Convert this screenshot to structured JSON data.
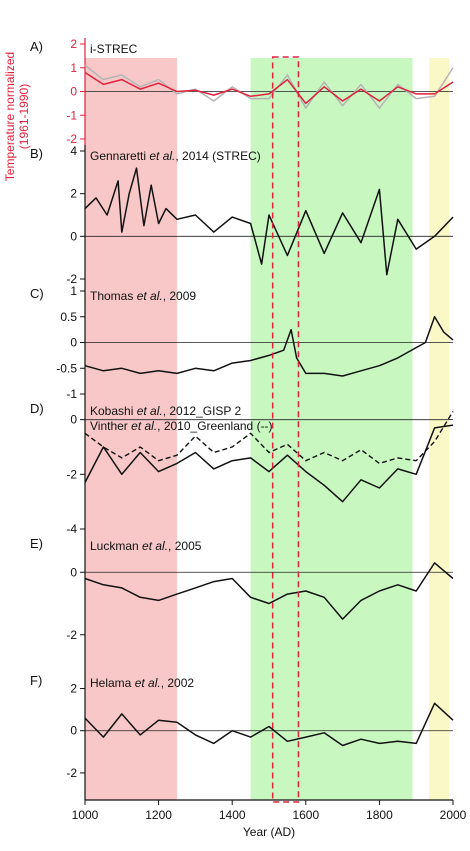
{
  "chart_data": {
    "type": "line",
    "xlabel": "Year (AD)",
    "xlim": [
      1000,
      2000
    ],
    "xticks": [
      1000,
      1200,
      1400,
      1600,
      1800,
      2000
    ],
    "shaded_periods": [
      {
        "from": 1000,
        "to": 1250,
        "color": "#f8c8c8"
      },
      {
        "from": 1450,
        "to": 1890,
        "color": "#c8f8c0"
      },
      {
        "from": 1935,
        "to": 1990,
        "color": "#fbf8c8"
      }
    ],
    "dashed_box": {
      "from": 1510,
      "to": 1580,
      "color": "#e0223c"
    },
    "panels": [
      {
        "letter": "A)",
        "ylabel": "Temperature normalized (1961-1990)",
        "axis_color": "#e0223c",
        "ylim": [
          -2,
          2
        ],
        "yticks": [
          -2,
          -1,
          0,
          1,
          2
        ],
        "label_parts": [
          {
            "text": "i-STREC",
            "italic": false
          }
        ],
        "series": [
          {
            "style": "grey",
            "color": "#b4b4b4",
            "width": 1.5,
            "dashed": false,
            "x": [
              1000,
              1050,
              1100,
              1150,
              1200,
              1250,
              1300,
              1350,
              1400,
              1450,
              1500,
              1550,
              1600,
              1650,
              1700,
              1750,
              1800,
              1850,
              1900,
              1950,
              2000
            ],
            "y": [
              1.1,
              0.5,
              0.7,
              0.2,
              0.5,
              -0.1,
              0.1,
              -0.4,
              0.2,
              -0.3,
              -0.3,
              0.7,
              -0.7,
              0.4,
              -0.6,
              0.3,
              -0.7,
              0.3,
              -0.3,
              -0.2,
              1.0
            ]
          },
          {
            "style": "red",
            "color": "#e0223c",
            "width": 1.5,
            "dashed": false,
            "x": [
              1000,
              1050,
              1100,
              1150,
              1200,
              1250,
              1300,
              1350,
              1400,
              1450,
              1500,
              1550,
              1600,
              1650,
              1700,
              1750,
              1800,
              1850,
              1900,
              1950,
              2000
            ],
            "y": [
              0.8,
              0.3,
              0.5,
              0.1,
              0.35,
              0.0,
              0.05,
              -0.15,
              0.1,
              -0.2,
              -0.1,
              0.5,
              -0.5,
              0.2,
              -0.4,
              0.1,
              -0.4,
              0.2,
              -0.1,
              -0.1,
              0.4
            ]
          }
        ]
      },
      {
        "letter": "B)",
        "ylim": [
          -2,
          4
        ],
        "yticks": [
          -2,
          0,
          2,
          4
        ],
        "label_parts": [
          {
            "text": "Gennaretti ",
            "italic": false
          },
          {
            "text": "et al.",
            "italic": true
          },
          {
            "text": ", 2014 (STREC)",
            "italic": false
          }
        ],
        "series": [
          {
            "style": "black",
            "color": "#111111",
            "width": 1.5,
            "dashed": false,
            "x": [
              1000,
              1030,
              1060,
              1090,
              1100,
              1120,
              1140,
              1160,
              1180,
              1200,
              1220,
              1250,
              1300,
              1350,
              1400,
              1450,
              1480,
              1500,
              1550,
              1600,
              1650,
              1700,
              1750,
              1800,
              1820,
              1850,
              1900,
              1950,
              2000
            ],
            "y": [
              1.3,
              1.8,
              1.0,
              2.6,
              0.2,
              2.0,
              3.2,
              0.5,
              2.4,
              0.6,
              1.3,
              0.8,
              1.0,
              0.2,
              0.9,
              0.6,
              -1.3,
              1.0,
              -0.9,
              1.2,
              -0.8,
              1.1,
              -0.3,
              2.2,
              -1.8,
              0.8,
              -0.6,
              0.0,
              0.9
            ]
          }
        ]
      },
      {
        "letter": "C)",
        "ylim": [
          -1,
          1
        ],
        "yticks": [
          -1,
          -0.5,
          0,
          0.5,
          1
        ],
        "label_parts": [
          {
            "text": "Thomas ",
            "italic": false
          },
          {
            "text": "et al.",
            "italic": true
          },
          {
            "text": ", 2009",
            "italic": false
          }
        ],
        "series": [
          {
            "style": "black",
            "color": "#111111",
            "width": 1.5,
            "dashed": false,
            "x": [
              1000,
              1050,
              1100,
              1150,
              1200,
              1250,
              1300,
              1350,
              1400,
              1450,
              1500,
              1540,
              1560,
              1575,
              1600,
              1650,
              1700,
              1750,
              1800,
              1850,
              1900,
              1925,
              1950,
              1975,
              2000
            ],
            "y": [
              -0.45,
              -0.55,
              -0.5,
              -0.6,
              -0.55,
              -0.6,
              -0.5,
              -0.55,
              -0.4,
              -0.35,
              -0.25,
              -0.15,
              0.25,
              -0.3,
              -0.6,
              -0.6,
              -0.65,
              -0.55,
              -0.45,
              -0.3,
              -0.1,
              0.0,
              0.5,
              0.2,
              0.05
            ]
          }
        ]
      },
      {
        "letter": "D)",
        "ylim": [
          -4,
          0.5
        ],
        "yticks": [
          -4,
          -2,
          0
        ],
        "label_parts": [
          {
            "text": "Kobashi ",
            "italic": false
          },
          {
            "text": "et al.",
            "italic": true
          },
          {
            "text": ", 2012_GISP 2",
            "italic": false
          }
        ],
        "label_parts_2": [
          {
            "text": "Vinther ",
            "italic": false
          },
          {
            "text": "et al.",
            "italic": true
          },
          {
            "text": ", 2010_Greenland (--)",
            "italic": false
          }
        ],
        "series": [
          {
            "style": "black",
            "color": "#111111",
            "width": 1.5,
            "dashed": false,
            "x": [
              1000,
              1050,
              1100,
              1150,
              1200,
              1250,
              1300,
              1350,
              1400,
              1450,
              1500,
              1550,
              1600,
              1650,
              1700,
              1750,
              1800,
              1850,
              1900,
              1950,
              2000
            ],
            "y": [
              -2.3,
              -1.0,
              -2.0,
              -1.2,
              -1.9,
              -1.6,
              -1.2,
              -1.8,
              -1.5,
              -1.4,
              -1.9,
              -1.3,
              -1.9,
              -2.4,
              -3.0,
              -2.2,
              -2.5,
              -1.8,
              -2.0,
              -0.3,
              -0.2
            ]
          },
          {
            "style": "dashed",
            "color": "#111111",
            "width": 1.4,
            "dashed": true,
            "x": [
              1000,
              1050,
              1100,
              1150,
              1200,
              1250,
              1300,
              1350,
              1400,
              1450,
              1500,
              1550,
              1600,
              1650,
              1700,
              1750,
              1800,
              1850,
              1900,
              1950,
              2000
            ],
            "y": [
              -0.5,
              -1.0,
              -1.4,
              -1.0,
              -1.5,
              -1.3,
              -0.6,
              -1.2,
              -1.0,
              -0.5,
              -1.2,
              -0.9,
              -1.5,
              -1.2,
              -1.5,
              -1.1,
              -1.6,
              -1.4,
              -1.5,
              -0.8,
              0.3
            ]
          }
        ]
      },
      {
        "letter": "E)",
        "ylim": [
          -3,
          1
        ],
        "yticks": [
          -2,
          0
        ],
        "label_parts": [
          {
            "text": "Luckman ",
            "italic": false
          },
          {
            "text": "et al.",
            "italic": true
          },
          {
            "text": ", 2005",
            "italic": false
          }
        ],
        "series": [
          {
            "style": "black",
            "color": "#111111",
            "width": 1.5,
            "dashed": false,
            "x": [
              1000,
              1050,
              1100,
              1150,
              1200,
              1250,
              1300,
              1350,
              1400,
              1450,
              1500,
              1550,
              1600,
              1650,
              1700,
              1750,
              1800,
              1850,
              1900,
              1950,
              2000
            ],
            "y": [
              -0.2,
              -0.4,
              -0.5,
              -0.8,
              -0.9,
              -0.7,
              -0.5,
              -0.3,
              -0.2,
              -0.8,
              -1.0,
              -0.7,
              -0.6,
              -0.8,
              -1.5,
              -0.9,
              -0.6,
              -0.4,
              -0.6,
              0.3,
              -0.2
            ]
          }
        ]
      },
      {
        "letter": "F)",
        "ylim": [
          -3,
          2.5
        ],
        "yticks": [
          -2,
          0,
          2
        ],
        "label_parts": [
          {
            "text": "Helama ",
            "italic": false
          },
          {
            "text": "et al.",
            "italic": true
          },
          {
            "text": ", 2002",
            "italic": false
          }
        ],
        "series": [
          {
            "style": "black",
            "color": "#111111",
            "width": 1.5,
            "dashed": false,
            "x": [
              1000,
              1050,
              1100,
              1150,
              1200,
              1250,
              1300,
              1350,
              1400,
              1450,
              1500,
              1550,
              1600,
              1650,
              1700,
              1750,
              1800,
              1850,
              1900,
              1950,
              2000
            ],
            "y": [
              0.6,
              -0.3,
              0.8,
              -0.2,
              0.5,
              0.4,
              -0.2,
              -0.6,
              0.0,
              -0.3,
              0.2,
              -0.5,
              -0.3,
              -0.1,
              -0.7,
              -0.4,
              -0.6,
              -0.5,
              -0.6,
              1.3,
              0.5
            ]
          }
        ]
      }
    ]
  }
}
